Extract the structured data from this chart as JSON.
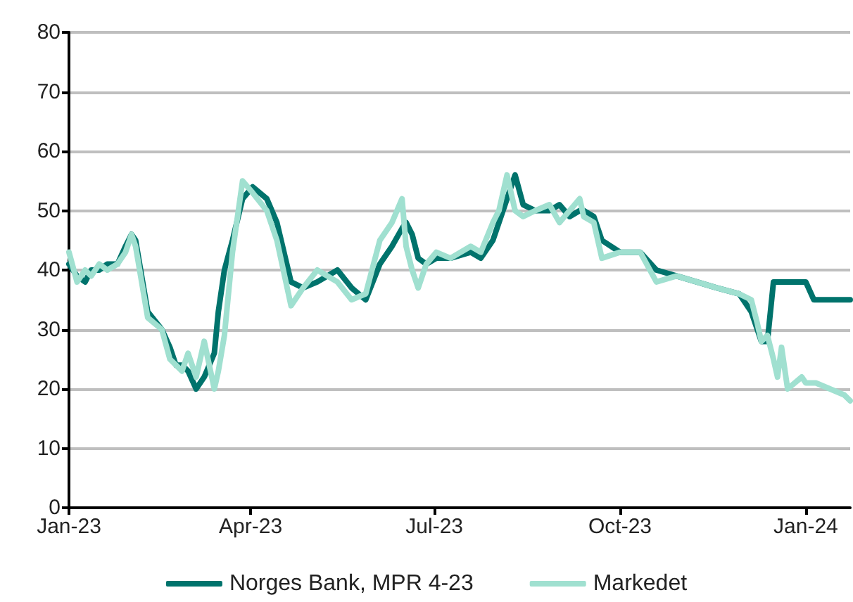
{
  "chart_data": {
    "type": "line",
    "x": [
      "2023-01-01",
      "2023-01-05",
      "2023-01-09",
      "2023-01-12",
      "2023-01-16",
      "2023-01-20",
      "2023-01-25",
      "2023-01-29",
      "2023-02-01",
      "2023-02-03",
      "2023-02-09",
      "2023-02-16",
      "2023-02-20",
      "2023-02-23",
      "2023-02-26",
      "2023-03-01",
      "2023-03-05",
      "2023-03-09",
      "2023-03-14",
      "2023-03-16",
      "2023-03-19",
      "2023-03-23",
      "2023-03-28",
      "2023-04-02",
      "2023-04-09",
      "2023-04-14",
      "2023-04-21",
      "2023-04-27",
      "2023-05-04",
      "2023-05-14",
      "2023-05-21",
      "2023-05-28",
      "2023-06-04",
      "2023-06-10",
      "2023-06-15",
      "2023-06-17",
      "2023-06-20",
      "2023-06-23",
      "2023-06-27",
      "2023-07-02",
      "2023-07-09",
      "2023-07-19",
      "2023-07-24",
      "2023-07-30",
      "2023-08-02",
      "2023-08-06",
      "2023-08-10",
      "2023-08-14",
      "2023-08-20",
      "2023-08-27",
      "2023-09-01",
      "2023-09-06",
      "2023-09-11",
      "2023-09-13",
      "2023-09-18",
      "2023-09-22",
      "2023-10-01",
      "2023-10-11",
      "2023-10-19",
      "2023-10-29",
      "2023-11-08",
      "2023-11-18",
      "2023-11-29",
      "2023-12-05",
      "2023-12-08",
      "2023-12-10",
      "2023-12-13",
      "2023-12-16",
      "2023-12-18",
      "2023-12-20",
      "2023-12-23",
      "2023-12-30",
      "2024-01-01",
      "2024-01-05",
      "2024-01-06",
      "2024-01-13",
      "2024-01-20",
      "2024-01-23"
    ],
    "series": [
      {
        "name": "Norges Bank, MPR 4-23",
        "color": "#00736c",
        "values": [
          41,
          39,
          38,
          40,
          40,
          41,
          41,
          44,
          46,
          45,
          33,
          30,
          27,
          24,
          24,
          23,
          20,
          22,
          26,
          33,
          40,
          45,
          52,
          54,
          52,
          48,
          38,
          37,
          38,
          40,
          37,
          35,
          41,
          44,
          47,
          48,
          46,
          42,
          41,
          42,
          42,
          43,
          42,
          45,
          48,
          52,
          56,
          51,
          50,
          50,
          51,
          49,
          50,
          50,
          49,
          45,
          43,
          43,
          40,
          39,
          38,
          37,
          36,
          33,
          30,
          28,
          28,
          38,
          38,
          38,
          38,
          38,
          38,
          35,
          35,
          35,
          35,
          35
        ]
      },
      {
        "name": "Markedet",
        "color": "#a0e0d0",
        "values": [
          43,
          38,
          40,
          39,
          41,
          40,
          41,
          43,
          46,
          44,
          32,
          30,
          25,
          24,
          23,
          26,
          22,
          28,
          20,
          23,
          29,
          43,
          55,
          53,
          50,
          45,
          34,
          37,
          40,
          38,
          35,
          36,
          45,
          48,
          52,
          44,
          40,
          37,
          41,
          43,
          42,
          44,
          43,
          48,
          50,
          56,
          50,
          49,
          50,
          51,
          48,
          50,
          52,
          49,
          48,
          42,
          43,
          43,
          38,
          39,
          38,
          37,
          36,
          35,
          31,
          28,
          29,
          25,
          22,
          27,
          20,
          22,
          21,
          21,
          21,
          20,
          19,
          18
        ]
      }
    ],
    "xlim": [
      "2023-01-01",
      "2024-01-23"
    ],
    "xticks": [
      {
        "value": "2023-01-01",
        "label": "Jan-23"
      },
      {
        "value": "2023-04-01",
        "label": "Apr-23"
      },
      {
        "value": "2023-07-01",
        "label": "Jul-23"
      },
      {
        "value": "2023-10-01",
        "label": "Oct-23"
      },
      {
        "value": "2024-01-01",
        "label": "Jan-24"
      }
    ],
    "ylim": [
      0,
      80
    ],
    "yticks": [
      0,
      10,
      20,
      30,
      40,
      50,
      60,
      70,
      80
    ],
    "grid": "y",
    "legend": "bottom",
    "marker": "none",
    "line_style": "solid"
  }
}
